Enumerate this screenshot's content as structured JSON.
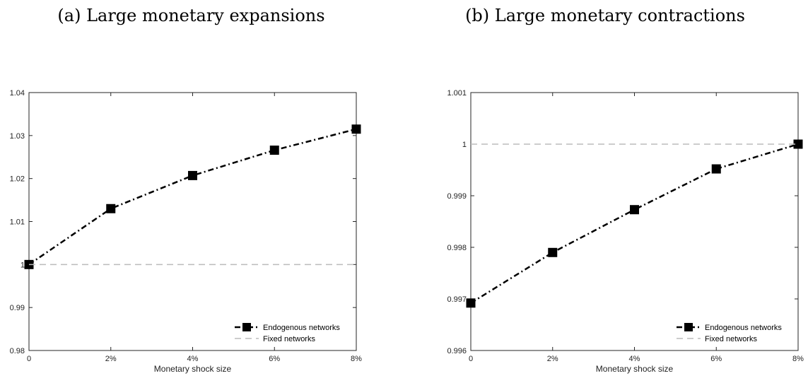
{
  "panels": [
    {
      "title": "(a) Large monetary expansions",
      "chart_data": {
        "type": "line",
        "xlabel": "Monetary shock size",
        "ylabel": "",
        "x": [
          0,
          2,
          4,
          6,
          8
        ],
        "x_tick_labels": [
          "0",
          "2%",
          "4%",
          "6%",
          "8%"
        ],
        "xlim": [
          0,
          8
        ],
        "ylim": [
          0.98,
          1.04
        ],
        "y_ticks": [
          0.98,
          0.99,
          1,
          1.01,
          1.02,
          1.03,
          1.04
        ],
        "y_tick_labels": [
          "0.98",
          "0.99",
          "1",
          "1.01",
          "1.02",
          "1.03",
          "1.04"
        ],
        "series": [
          {
            "name": "Endogenous networks",
            "values": [
              1.0,
              1.013,
              1.0207,
              1.0266,
              1.0315
            ],
            "color": "#000000",
            "style": "dash-dot",
            "marker": "square"
          },
          {
            "name": "Fixed networks",
            "values": [
              1,
              1,
              1,
              1,
              1
            ],
            "color": "#bbbbbb",
            "style": "dashed",
            "marker": "none"
          }
        ],
        "legend_position": "bottom-right",
        "grid": false
      }
    },
    {
      "title": "(b) Large monetary contractions",
      "chart_data": {
        "type": "line",
        "xlabel": "Monetary shock size",
        "ylabel": "",
        "x": [
          0,
          2,
          4,
          6,
          8
        ],
        "x_tick_labels": [
          "0",
          "2%",
          "4%",
          "6%",
          "8%"
        ],
        "xlim": [
          0,
          8
        ],
        "ylim": [
          0.996,
          1.001
        ],
        "y_ticks": [
          0.996,
          0.997,
          0.998,
          0.999,
          1,
          1.001
        ],
        "y_tick_labels": [
          "0.996",
          "0.997",
          "0.998",
          "0.999",
          "1",
          "1.001"
        ],
        "series": [
          {
            "name": "Endogenous networks",
            "values": [
              0.99692,
              0.9979,
              0.99873,
              0.99952,
              1.0
            ],
            "color": "#000000",
            "style": "dash-dot",
            "marker": "square"
          },
          {
            "name": "Fixed networks",
            "values": [
              1,
              1,
              1,
              1,
              1
            ],
            "color": "#bbbbbb",
            "style": "dashed",
            "marker": "none"
          }
        ],
        "legend_position": "bottom-right",
        "grid": false
      }
    }
  ]
}
